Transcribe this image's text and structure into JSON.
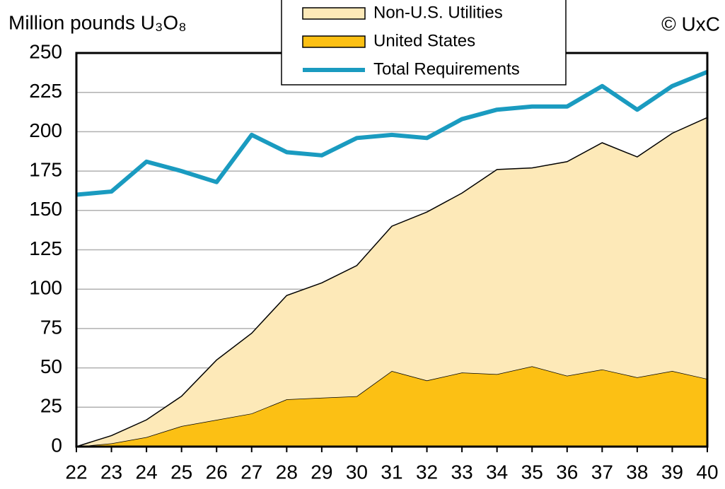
{
  "chart_data": {
    "type": "stacked-area-line",
    "title": "Million pounds U₃O₈",
    "annotation": "© UxC",
    "categories": [
      "22",
      "23",
      "24",
      "25",
      "26",
      "27",
      "28",
      "29",
      "30",
      "31",
      "32",
      "33",
      "34",
      "35",
      "36",
      "37",
      "38",
      "39",
      "40"
    ],
    "series": [
      {
        "name": "United States",
        "kind": "area",
        "color": "#fcc014",
        "values": [
          0,
          2,
          6,
          13,
          17,
          21,
          30,
          31,
          32,
          48,
          42,
          47,
          46,
          51,
          45,
          49,
          44,
          48,
          43
        ]
      },
      {
        "name": "Non-U.S. Utilities",
        "kind": "area",
        "color": "#fde9b8",
        "values": [
          0,
          5,
          11,
          19,
          38,
          51,
          66,
          73,
          83,
          92,
          107,
          114,
          130,
          126,
          136,
          144,
          140,
          151,
          166
        ]
      },
      {
        "name": "Total Requirements",
        "kind": "line",
        "color": "#1a9bc0",
        "values": [
          160,
          162,
          181,
          175,
          168,
          198,
          187,
          185,
          196,
          198,
          196,
          208,
          214,
          216,
          216,
          229,
          214,
          229,
          238
        ]
      }
    ],
    "ylim": [
      0,
      250
    ],
    "yticks": [
      0,
      25,
      50,
      75,
      100,
      125,
      150,
      175,
      200,
      225,
      250
    ],
    "grid": true
  }
}
